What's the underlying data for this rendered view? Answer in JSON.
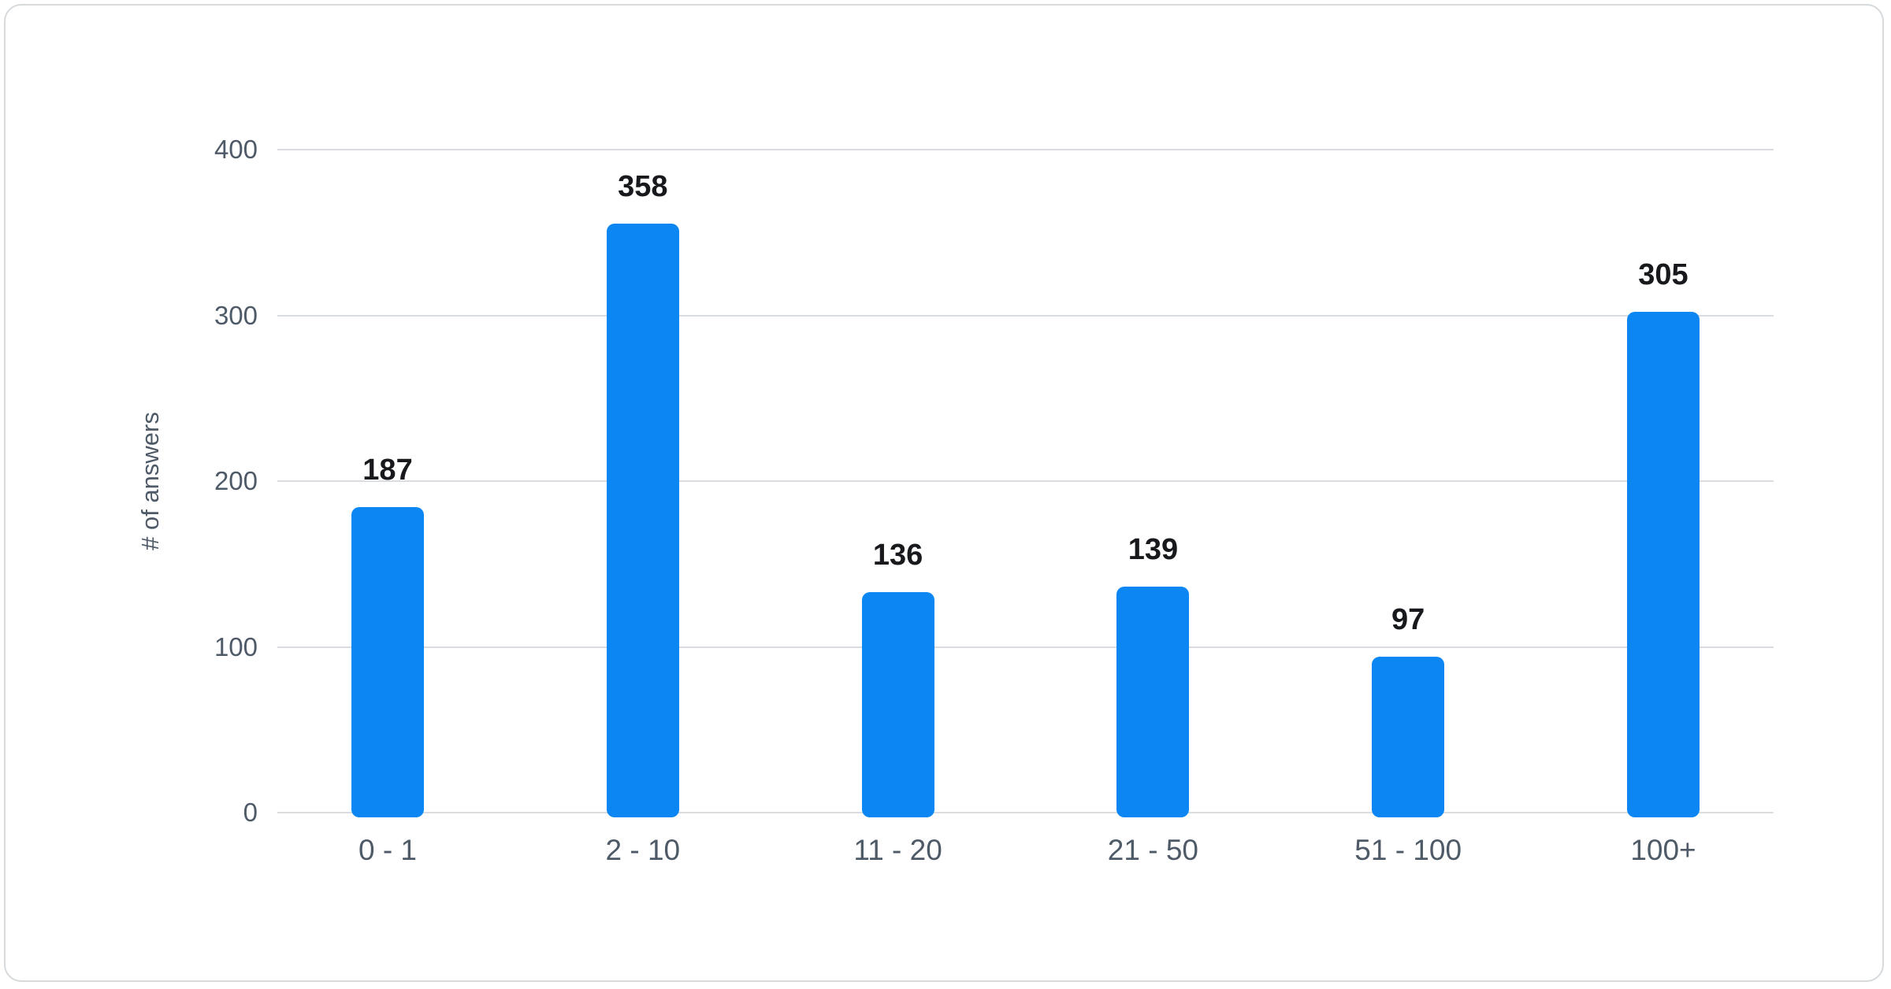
{
  "card": {
    "background": "#ffffff",
    "border_color": "#d6dadd"
  },
  "chart_data": {
    "type": "bar",
    "title": "",
    "categories": [
      "0 - 1",
      "2 - 10",
      "11 - 20",
      "21 - 50",
      "51 - 100",
      "100+"
    ],
    "values": [
      187,
      358,
      136,
      139,
      97,
      305
    ],
    "value_labels": [
      "187",
      "358",
      "136",
      "139",
      "97",
      "305"
    ],
    "xlabel": "",
    "ylabel": "# of answers",
    "ylim": [
      0,
      400
    ],
    "y_ticks": [
      0,
      100,
      200,
      300,
      400
    ],
    "y_tick_labels": [
      "0",
      "100",
      "200",
      "300",
      "400"
    ],
    "grid": "horizontal",
    "legend": "none",
    "colors": {
      "bar": "#0b86f2",
      "gridline": "#d9dce0",
      "axis_text": "#4e5a67",
      "value_text": "#17191c"
    }
  }
}
